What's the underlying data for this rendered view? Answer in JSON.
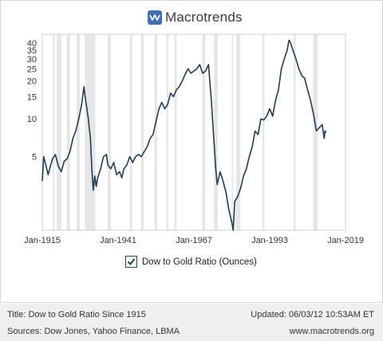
{
  "brand": {
    "name": "Macrotrends",
    "icon": "macrotrends-logo-icon",
    "accent": "#3f6fb7"
  },
  "legend": {
    "checked": true,
    "label": "Dow to Gold Ratio (Ounces)"
  },
  "footer": {
    "title": "Title: Dow to Gold Ratio Since 1915",
    "updated": "Updated: 06/03/12 10:53AM ET",
    "sources": "Sources: Dow Jones, Yahoo Finance, LBMA",
    "site": "www.macrotrends.org"
  },
  "chart_data": {
    "type": "line",
    "title": "",
    "xlabel": "",
    "ylabel": "",
    "y_scale": "log",
    "ylim": [
      1.3,
      47
    ],
    "xlim": [
      1915,
      2019
    ],
    "x_ticks": [
      1915,
      1941,
      1967,
      1993,
      2019
    ],
    "x_tick_labels": [
      "Jan-1915",
      "Jan-1941",
      "Jan-1967",
      "Jan-1993",
      "Jan-2019"
    ],
    "y_ticks": [
      5,
      10,
      15,
      20,
      25,
      30,
      35,
      40
    ],
    "y_tick_labels": [
      "5",
      "10",
      "15",
      "20",
      "25",
      "30",
      "35",
      "40"
    ],
    "grid": false,
    "line_color": "#1f3d55",
    "recession_shading": [
      [
        1918.6,
        1919.2
      ],
      [
        1920.0,
        1921.5
      ],
      [
        1923.4,
        1924.5
      ],
      [
        1926.8,
        1927.9
      ],
      [
        1929.6,
        1933.2
      ],
      [
        1937.4,
        1938.5
      ],
      [
        1945.1,
        1945.8
      ],
      [
        1948.9,
        1949.8
      ],
      [
        1953.5,
        1954.4
      ],
      [
        1957.6,
        1958.3
      ],
      [
        1960.3,
        1961.1
      ],
      [
        1969.9,
        1970.9
      ],
      [
        1973.9,
        1975.2
      ],
      [
        1980.0,
        1980.5
      ],
      [
        1981.5,
        1982.9
      ],
      [
        1990.5,
        1991.2
      ],
      [
        2001.2,
        2001.9
      ],
      [
        2007.9,
        2009.5
      ]
    ],
    "series": [
      {
        "name": "Dow to Gold Ratio (Ounces)",
        "x": [
          1915,
          1915.5,
          1916,
          1917,
          1917.8,
          1918.5,
          1919.5,
          1920.5,
          1921.5,
          1922.5,
          1923.5,
          1924.5,
          1925.5,
          1926.5,
          1927.5,
          1928.5,
          1929.3,
          1929.7,
          1930.2,
          1930.8,
          1931.5,
          1932.0,
          1932.5,
          1933.0,
          1933.5,
          1934.0,
          1935.0,
          1936.0,
          1937.0,
          1937.5,
          1938.5,
          1939.5,
          1940.5,
          1941.5,
          1942.3,
          1943.0,
          1944.0,
          1945.0,
          1946.0,
          1947.0,
          1948.0,
          1949.0,
          1950.0,
          1951.0,
          1952.0,
          1953.0,
          1954.0,
          1955.0,
          1956.0,
          1957.0,
          1958.0,
          1959.0,
          1960.0,
          1961.0,
          1962.0,
          1963.0,
          1964.0,
          1965.0,
          1966.0,
          1967.0,
          1968.0,
          1969.0,
          1970.0,
          1971.0,
          1972.0,
          1973.0,
          1973.5,
          1974.0,
          1974.5,
          1975.0,
          1976.0,
          1977.0,
          1978.0,
          1979.0,
          1980.0,
          1980.5,
          1981.0,
          1982.0,
          1983.0,
          1984.0,
          1985.0,
          1986.0,
          1987.0,
          1988.0,
          1989.0,
          1990.0,
          1991.0,
          1992.0,
          1993.0,
          1994.0,
          1995.0,
          1996.0,
          1997.0,
          1998.0,
          1999.0,
          1999.6,
          2000.0,
          2001.0,
          2002.0,
          2003.0,
          2004.0,
          2005.0,
          2006.0,
          2007.0,
          2008.0,
          2009.0,
          2010.0,
          2011.0,
          2011.7,
          2012.0,
          2012.4
        ],
        "values": [
          3.2,
          5.0,
          4.5,
          3.6,
          4.2,
          4.8,
          5.2,
          4.2,
          3.8,
          4.6,
          4.8,
          5.5,
          7.0,
          8.0,
          10.0,
          13.0,
          18.0,
          15.0,
          12.5,
          10.0,
          7.0,
          4.0,
          2.7,
          3.5,
          2.9,
          3.4,
          4.0,
          5.0,
          5.2,
          4.3,
          4.0,
          4.5,
          3.6,
          3.8,
          3.4,
          4.0,
          4.3,
          5.0,
          4.5,
          5.0,
          5.2,
          5.0,
          5.5,
          6.0,
          7.0,
          7.5,
          9.5,
          12.0,
          13.5,
          12.0,
          13.0,
          16.0,
          15.0,
          17.0,
          18.0,
          20.0,
          22.5,
          25.0,
          23.0,
          24.0,
          25.0,
          27.0,
          23.0,
          24.0,
          27.0,
          14.0,
          9.0,
          6.0,
          4.0,
          3.0,
          3.8,
          3.2,
          2.6,
          1.9,
          1.5,
          1.3,
          2.2,
          2.4,
          2.8,
          3.5,
          4.0,
          5.0,
          6.0,
          8.0,
          7.5,
          10.0,
          9.8,
          10.5,
          12.0,
          10.5,
          14.0,
          17.0,
          25.0,
          30.0,
          35.0,
          42.0,
          41.0,
          35.0,
          30.0,
          25.0,
          22.0,
          21.0,
          17.0,
          14.0,
          11.0,
          8.0,
          8.5,
          9.0,
          7.0,
          8.0,
          7.8
        ]
      }
    ]
  }
}
